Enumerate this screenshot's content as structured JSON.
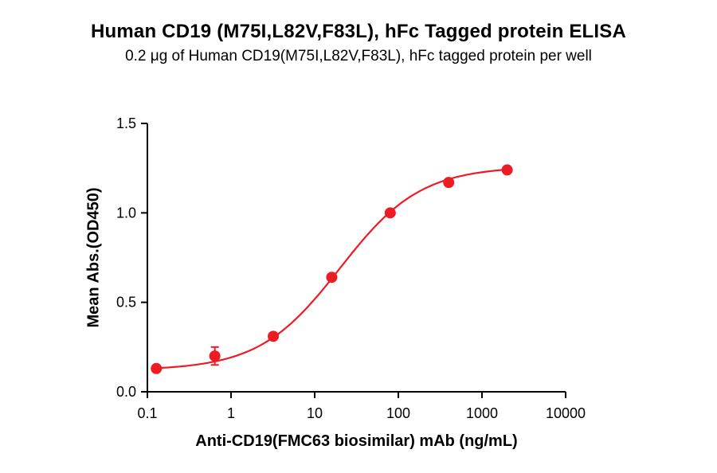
{
  "chart_data": {
    "type": "scatter",
    "title": "Human CD19 (M75I,L82V,F83L), hFc Tagged protein ELISA",
    "subtitle": "0.2 μg of Human CD19(M75I,L82V,F83L), hFc tagged protein per well",
    "xlabel": "Anti-CD19(FMC63 biosimilar) mAb (ng/mL)",
    "ylabel": "Mean Abs.(OD450)",
    "x_scale": "log",
    "xlim": [
      0.1,
      10000
    ],
    "ylim": [
      0,
      1.5
    ],
    "x_ticks": [
      "0.1",
      "1",
      "10",
      "100",
      "1000",
      "10000"
    ],
    "y_ticks": [
      "0.0",
      "0.5",
      "1.0",
      "1.5"
    ],
    "x": [
      0.128,
      0.64,
      3.2,
      16,
      80,
      400,
      2000
    ],
    "y": [
      0.13,
      0.2,
      0.31,
      0.64,
      1.0,
      1.17,
      1.24
    ],
    "y_err": [
      0,
      0.05,
      0,
      0,
      0,
      0,
      0
    ],
    "fit": {
      "bottom": 0.12,
      "top": 1.26,
      "ec50": 20,
      "hill": 0.9
    },
    "marker_color": "#ed1c24",
    "line_color": "#ed1c24",
    "grid": false,
    "legend": false
  }
}
